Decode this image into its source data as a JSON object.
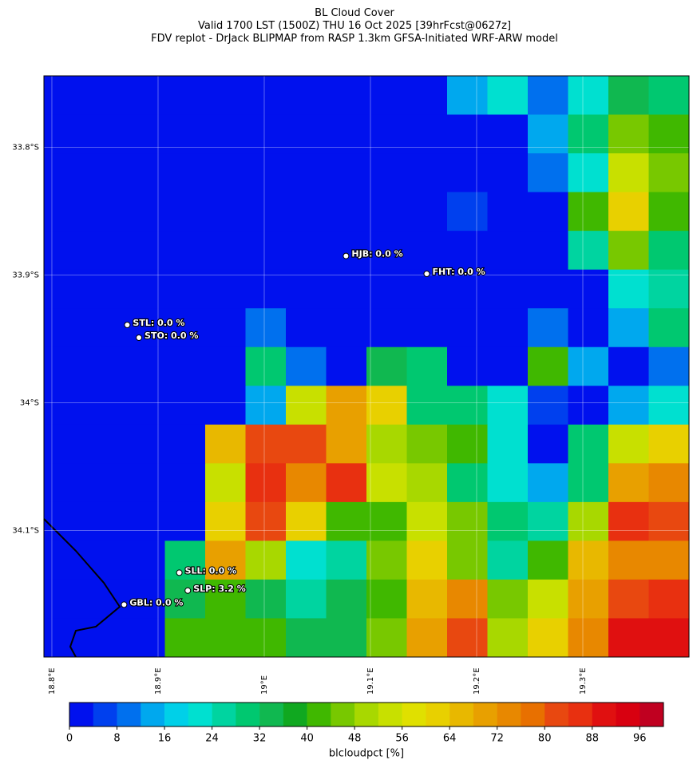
{
  "chart_data": {
    "type": "heatmap",
    "title": "BL Cloud Cover",
    "subtitle": [
      "Valid 1700 LST (1500Z) THU 16 Oct 2025 [39hrFcst@0627z]",
      "FDV replot - DrJack BLIPMAP from RASP 1.3km GFSA-Initiated WRF-ARW model"
    ],
    "xlim": [
      18.7925,
      19.4
    ],
    "ylim": [
      -34.199,
      -33.744
    ],
    "xticks": [
      {
        "value": 18.8,
        "label": "18.8°E"
      },
      {
        "value": 18.9,
        "label": "18.9°E"
      },
      {
        "value": 19.0,
        "label": "19°E"
      },
      {
        "value": 19.1,
        "label": "19.1°E"
      },
      {
        "value": 19.2,
        "label": "19.2°E"
      },
      {
        "value": 19.3,
        "label": "19.3°E"
      }
    ],
    "yticks": [
      {
        "value": -33.8,
        "label": "33.8°S"
      },
      {
        "value": -33.9,
        "label": "33.9°S"
      },
      {
        "value": -34.0,
        "label": "34°S"
      },
      {
        "value": -34.1,
        "label": "34.1°S"
      }
    ],
    "grid": true,
    "values": [
      [
        0,
        0,
        0,
        0,
        0,
        0,
        0,
        0,
        0,
        0,
        15,
        20,
        10,
        20,
        35,
        30
      ],
      [
        0,
        0,
        0,
        0,
        0,
        0,
        0,
        0,
        0,
        0,
        0,
        0,
        15,
        30,
        45,
        40
      ],
      [
        0,
        0,
        0,
        0,
        0,
        0,
        0,
        0,
        0,
        0,
        0,
        0,
        10,
        20,
        55,
        45
      ],
      [
        0,
        0,
        0,
        0,
        0,
        0,
        0,
        0,
        0,
        0,
        5,
        0,
        0,
        40,
        60,
        40
      ],
      [
        0,
        0,
        0,
        0,
        0,
        0,
        0,
        0,
        0,
        0,
        0,
        0,
        0,
        25,
        45,
        30
      ],
      [
        0,
        0,
        0,
        0,
        0,
        0,
        0,
        0,
        0,
        0,
        0,
        0,
        0,
        0,
        20,
        25
      ],
      [
        0,
        0,
        0,
        0,
        0,
        10,
        0,
        0,
        0,
        0,
        0,
        0,
        10,
        0,
        15,
        30
      ],
      [
        0,
        0,
        0,
        0,
        0,
        30,
        10,
        0,
        35,
        30,
        0,
        0,
        40,
        15,
        0,
        10
      ],
      [
        0,
        0,
        0,
        0,
        0,
        15,
        55,
        70,
        60,
        30,
        30,
        20,
        5,
        0,
        15,
        20
      ],
      [
        0,
        0,
        0,
        0,
        65,
        80,
        80,
        70,
        50,
        45,
        40,
        20,
        0,
        30,
        55,
        60
      ],
      [
        0,
        0,
        0,
        0,
        55,
        85,
        75,
        85,
        55,
        50,
        30,
        20,
        15,
        30,
        70,
        75
      ],
      [
        0,
        0,
        0,
        0,
        60,
        80,
        60,
        40,
        40,
        55,
        45,
        30,
        25,
        50,
        85,
        80
      ],
      [
        0,
        0,
        0,
        30,
        70,
        50,
        20,
        25,
        45,
        60,
        45,
        25,
        40,
        65,
        75,
        75
      ],
      [
        0,
        0,
        0,
        35,
        40,
        35,
        25,
        35,
        40,
        65,
        75,
        45,
        55,
        70,
        80,
        85
      ],
      [
        0,
        0,
        0,
        40,
        40,
        40,
        35,
        35,
        45,
        70,
        80,
        50,
        60,
        75,
        90,
        90
      ]
    ],
    "stations": [
      {
        "label": "HJB: 0.0 %",
        "lon": 19.077,
        "lat": -33.885
      },
      {
        "label": "FHT: 0.0 %",
        "lon": 19.153,
        "lat": -33.899
      },
      {
        "label": "STL: 0.0 %",
        "lon": 18.871,
        "lat": -33.939
      },
      {
        "label": "STO: 0.0 %",
        "lon": 18.882,
        "lat": -33.949
      },
      {
        "label": "SLL: 0.0 %",
        "lon": 18.92,
        "lat": -34.133
      },
      {
        "label": "SLP: 3.2 %",
        "lon": 18.928,
        "lat": -34.147
      },
      {
        "label": "GBL: 0.0 %",
        "lon": 18.868,
        "lat": -34.158
      }
    ],
    "colorbar": {
      "label": "blcloudpct [%]",
      "lim": [
        0,
        100
      ],
      "ticks": [
        0,
        8,
        16,
        24,
        32,
        40,
        48,
        56,
        64,
        72,
        80,
        88,
        96
      ],
      "colors": [
        "#0011ee",
        "#0040ee",
        "#0070ee",
        "#00a8ee",
        "#00d0e8",
        "#00e0d0",
        "#00d4a0",
        "#00c870",
        "#10b850",
        "#10a820",
        "#40b800",
        "#78c800",
        "#a8d800",
        "#c8e000",
        "#e0e000",
        "#e8d000",
        "#e8b800",
        "#e8a000",
        "#e88800",
        "#e87000",
        "#e84810",
        "#e83010",
        "#e01010",
        "#d80010",
        "#c00020"
      ]
    }
  }
}
